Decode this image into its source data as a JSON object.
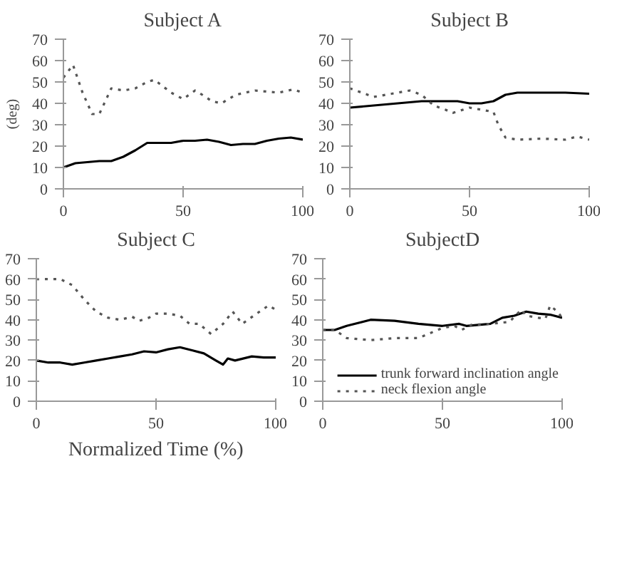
{
  "chart_data": [
    {
      "type": "line",
      "title": "Subject A",
      "ylabel": "(deg)",
      "xlim": [
        0,
        100
      ],
      "ylim": [
        0,
        70
      ],
      "xticks": [
        0,
        50,
        100
      ],
      "yticks": [
        0,
        10,
        20,
        30,
        40,
        50,
        60,
        70
      ],
      "grid": false,
      "series": [
        {
          "color": "#000000",
          "line_style": "solid",
          "x": [
            0,
            5,
            10,
            15,
            20,
            25,
            30,
            35,
            40,
            45,
            50,
            55,
            60,
            65,
            70,
            75,
            80,
            85,
            90,
            95,
            100
          ],
          "values": [
            10,
            12,
            12.5,
            13,
            13,
            15,
            18,
            21.5,
            21.5,
            21.5,
            22.5,
            22.5,
            23,
            22,
            20.5,
            21,
            21,
            22.5,
            23.5,
            24,
            23
          ]
        },
        {
          "color": "#555555",
          "line_style": "dotted",
          "x": [
            0,
            4,
            8,
            12,
            15,
            20,
            25,
            30,
            35,
            38,
            45,
            50,
            55,
            58,
            62,
            66,
            72,
            80,
            90,
            96,
            100
          ],
          "values": [
            52,
            58,
            45,
            35,
            35,
            47,
            46,
            47,
            50,
            51,
            45,
            42,
            46,
            44,
            41,
            40,
            44,
            46,
            45,
            46.5,
            45
          ]
        }
      ]
    },
    {
      "type": "line",
      "title": "Subject B",
      "xlim": [
        0,
        100
      ],
      "ylim": [
        0,
        70
      ],
      "xticks": [
        0,
        50,
        100
      ],
      "yticks": [
        0,
        10,
        20,
        30,
        40,
        50,
        60,
        70
      ],
      "grid": false,
      "series": [
        {
          "color": "#000000",
          "line_style": "solid",
          "x": [
            0,
            10,
            20,
            30,
            40,
            45,
            50,
            55,
            60,
            65,
            70,
            80,
            90,
            100
          ],
          "values": [
            38,
            39,
            40,
            41,
            41,
            41,
            40,
            40,
            41,
            44,
            45,
            45,
            45,
            44.5
          ]
        },
        {
          "color": "#555555",
          "line_style": "dotted",
          "x": [
            0,
            5,
            10,
            20,
            25,
            30,
            35,
            40,
            43,
            50,
            55,
            60,
            62,
            65,
            70,
            80,
            90,
            95,
            100
          ],
          "values": [
            47,
            45,
            43,
            45,
            46,
            44,
            39,
            37,
            35.5,
            38,
            37,
            36,
            30,
            24,
            23,
            23.5,
            23,
            24.5,
            23
          ]
        }
      ]
    },
    {
      "type": "line",
      "title": "Subject C",
      "xlabel": "Normalized Time (%)",
      "xlim": [
        0,
        100
      ],
      "ylim": [
        0,
        70
      ],
      "xticks": [
        0,
        50,
        100
      ],
      "yticks": [
        0,
        10,
        20,
        30,
        40,
        50,
        60,
        70
      ],
      "grid": false,
      "series": [
        {
          "color": "#000000",
          "line_style": "solid",
          "x": [
            0,
            5,
            10,
            15,
            20,
            25,
            30,
            35,
            40,
            45,
            50,
            55,
            60,
            65,
            70,
            75,
            78,
            80,
            83,
            90,
            95,
            100
          ],
          "values": [
            20,
            19,
            19,
            18,
            19,
            20,
            21,
            22,
            23,
            24.5,
            24,
            25.5,
            26.5,
            25,
            23.5,
            20,
            18,
            21,
            20,
            22,
            21.5,
            21.5
          ]
        },
        {
          "color": "#555555",
          "line_style": "dotted",
          "x": [
            0,
            10,
            15,
            20,
            25,
            30,
            35,
            40,
            43,
            47,
            50,
            55,
            60,
            64,
            68,
            73,
            78,
            82,
            86,
            92,
            97,
            100
          ],
          "values": [
            60,
            60,
            57,
            50,
            44,
            41,
            40,
            41.5,
            39.5,
            41,
            43,
            43,
            42,
            38,
            38,
            33,
            38,
            44,
            38,
            43,
            47,
            45
          ]
        }
      ]
    },
    {
      "type": "line",
      "title": "SubjectD",
      "xlim": [
        0,
        100
      ],
      "ylim": [
        0,
        70
      ],
      "xticks": [
        0,
        50,
        100
      ],
      "yticks": [
        0,
        10,
        20,
        30,
        40,
        50,
        60,
        70
      ],
      "grid": false,
      "legend": "bottom_right",
      "series": [
        {
          "name": "trunk forward inclination angle",
          "color": "#000000",
          "line_style": "solid",
          "x": [
            0,
            5,
            10,
            20,
            30,
            40,
            50,
            57,
            60,
            70,
            75,
            80,
            85,
            90,
            95,
            100
          ],
          "values": [
            35,
            35,
            37,
            40,
            39.5,
            38,
            37,
            38,
            37,
            38,
            41,
            42,
            44,
            43,
            42.5,
            41
          ]
        },
        {
          "name": "neck flexion angle",
          "color": "#555555",
          "line_style": "dotted",
          "x": [
            0,
            5,
            10,
            20,
            30,
            40,
            50,
            55,
            58,
            62,
            70,
            78,
            83,
            85,
            90,
            93,
            95,
            98,
            100
          ],
          "values": [
            35,
            35,
            31,
            30,
            31,
            31,
            36,
            37,
            35,
            37.5,
            38,
            39,
            45,
            42,
            41,
            40.5,
            47,
            44,
            41
          ]
        }
      ]
    }
  ]
}
